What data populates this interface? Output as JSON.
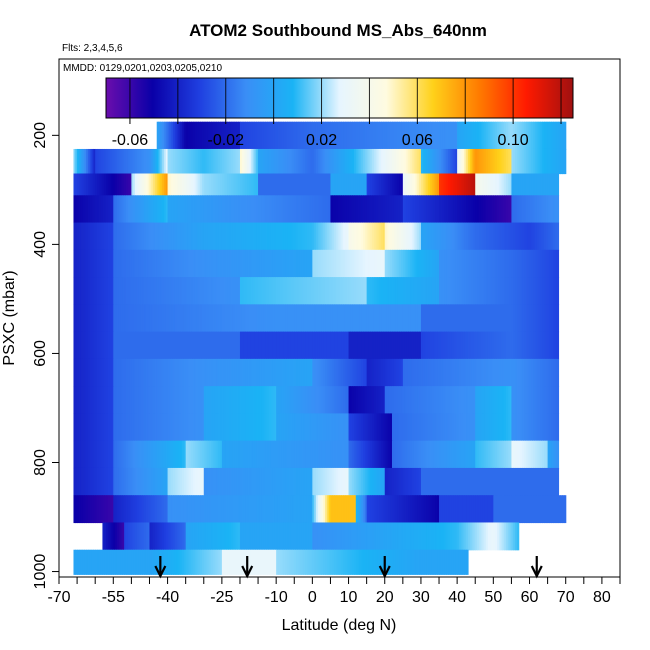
{
  "chart_data": {
    "type": "heatmap",
    "title": "ATOM2 Southbound MS_Abs_640nm",
    "flights_label": "Flts: 2,3,4,5,6",
    "dates_label": "MMDD: 0129,0201,0203,0205,0210",
    "xlabel": "Latitude (deg N)",
    "ylabel": "PSXC (mbar)",
    "xlim": [
      -70,
      85
    ],
    "ylim": [
      1010,
      60
    ],
    "x_ticks": [
      -70,
      -55,
      -40,
      -25,
      -10,
      0,
      10,
      20,
      30,
      40,
      50,
      60,
      70,
      80
    ],
    "y_ticks": [
      200,
      400,
      600,
      800,
      1000
    ],
    "colorbar": {
      "range": [
        -0.07,
        0.125
      ],
      "tick_values": [
        -0.06,
        -0.02,
        0.02,
        0.06,
        0.1
      ],
      "tick_labels": [
        "-0.06",
        "-0.02",
        "0.02",
        "0.06",
        "0.10"
      ],
      "colors": [
        "#6a0dad",
        "#0a00a8",
        "#1f3fe0",
        "#3a8ef6",
        "#1ab3f5",
        "#e6f5ff",
        "#fffbe0",
        "#ffd11a",
        "#ff7a00",
        "#ff1a00",
        "#a01010"
      ]
    },
    "arrow_latitudes": [
      -42,
      -18,
      20,
      62
    ],
    "rows": [
      {
        "p_min": 175,
        "p_max": 225,
        "x_min": -43,
        "x_max": 70,
        "segments": [
          [
            -43,
            0.0,
            -35,
            -0.05
          ],
          [
            -35,
            -0.05,
            -20,
            -0.04
          ],
          [
            -20,
            -0.03,
            0,
            -0.02
          ],
          [
            0,
            -0.02,
            40,
            -0.01
          ],
          [
            40,
            0.0,
            55,
            0.02
          ],
          [
            55,
            0.02,
            70,
            0.0
          ]
        ]
      },
      {
        "p_min": 225,
        "p_max": 270,
        "x_min": -66,
        "x_max": 70,
        "segments": [
          [
            -66,
            0.02,
            -60,
            -0.04
          ],
          [
            -60,
            -0.03,
            -45,
            -0.01
          ],
          [
            -45,
            -0.01,
            -40,
            0.03
          ],
          [
            -40,
            0.02,
            -30,
            0.01
          ],
          [
            -30,
            0.01,
            -20,
            0.02
          ],
          [
            -20,
            0.05,
            -15,
            0.01
          ],
          [
            -15,
            0.0,
            0,
            -0.02
          ],
          [
            0,
            -0.02,
            20,
            0.03
          ],
          [
            20,
            0.03,
            30,
            0.06
          ],
          [
            30,
            0.01,
            40,
            -0.03
          ],
          [
            40,
            0.03,
            45,
            0.08
          ],
          [
            45,
            0.08,
            55,
            0.06
          ],
          [
            55,
            0.02,
            70,
            0.0
          ]
        ]
      },
      {
        "p_min": 270,
        "p_max": 310,
        "x_min": -66,
        "x_max": 68,
        "segments": [
          [
            -66,
            -0.03,
            -50,
            -0.06
          ],
          [
            -50,
            0.02,
            -40,
            0.08
          ],
          [
            -40,
            0.05,
            -30,
            0.02
          ],
          [
            -30,
            0.02,
            -15,
            0.01
          ],
          [
            -15,
            -0.02,
            5,
            -0.02
          ],
          [
            5,
            0.0,
            15,
            0.0
          ],
          [
            15,
            -0.03,
            25,
            -0.05
          ],
          [
            25,
            0.03,
            35,
            0.08
          ],
          [
            35,
            0.1,
            45,
            0.12
          ],
          [
            45,
            0.04,
            55,
            0.02
          ],
          [
            55,
            0.0,
            68,
            0.0
          ]
        ]
      },
      {
        "p_min": 310,
        "p_max": 360,
        "x_min": -66,
        "x_max": 68,
        "segments": [
          [
            -66,
            -0.05,
            -55,
            -0.04
          ],
          [
            -55,
            -0.02,
            -40,
            0.01
          ],
          [
            -40,
            0.0,
            -20,
            -0.01
          ],
          [
            -20,
            -0.01,
            5,
            -0.02
          ],
          [
            5,
            -0.05,
            25,
            -0.04
          ],
          [
            25,
            -0.03,
            45,
            -0.05
          ],
          [
            45,
            -0.05,
            55,
            -0.06
          ],
          [
            55,
            -0.02,
            68,
            -0.01
          ]
        ]
      },
      {
        "p_min": 360,
        "p_max": 410,
        "x_min": -66,
        "x_max": 68,
        "segments": [
          [
            -66,
            -0.04,
            -55,
            -0.03
          ],
          [
            -55,
            -0.02,
            -30,
            0.0
          ],
          [
            -30,
            0.0,
            0,
            0.01
          ],
          [
            0,
            0.01,
            10,
            0.03
          ],
          [
            10,
            0.04,
            20,
            0.06
          ],
          [
            20,
            0.05,
            30,
            0.02
          ],
          [
            30,
            0.0,
            45,
            -0.02
          ],
          [
            45,
            -0.02,
            60,
            -0.03
          ],
          [
            60,
            -0.03,
            68,
            -0.02
          ]
        ]
      },
      {
        "p_min": 410,
        "p_max": 460,
        "x_min": -66,
        "x_max": 68,
        "segments": [
          [
            -66,
            -0.04,
            -55,
            -0.03
          ],
          [
            -55,
            -0.02,
            -30,
            -0.01
          ],
          [
            -30,
            -0.01,
            0,
            0.0
          ],
          [
            0,
            0.02,
            20,
            0.03
          ],
          [
            20,
            0.02,
            35,
            0.0
          ],
          [
            35,
            -0.01,
            55,
            -0.02
          ],
          [
            55,
            -0.02,
            68,
            -0.03
          ]
        ]
      },
      {
        "p_min": 460,
        "p_max": 510,
        "x_min": -66,
        "x_max": 68,
        "segments": [
          [
            -66,
            -0.04,
            -55,
            -0.03
          ],
          [
            -55,
            -0.02,
            -20,
            -0.01
          ],
          [
            -20,
            0.01,
            15,
            0.02
          ],
          [
            15,
            0.01,
            35,
            0.0
          ],
          [
            35,
            -0.01,
            55,
            -0.02
          ],
          [
            55,
            -0.02,
            68,
            -0.03
          ]
        ]
      },
      {
        "p_min": 510,
        "p_max": 560,
        "x_min": -66,
        "x_max": 68,
        "segments": [
          [
            -66,
            -0.04,
            -55,
            -0.03
          ],
          [
            -55,
            -0.02,
            -10,
            -0.01
          ],
          [
            -10,
            -0.01,
            30,
            -0.01
          ],
          [
            30,
            -0.02,
            55,
            -0.02
          ],
          [
            55,
            -0.02,
            68,
            -0.03
          ]
        ]
      },
      {
        "p_min": 560,
        "p_max": 610,
        "x_min": -66,
        "x_max": 68,
        "segments": [
          [
            -66,
            -0.04,
            -55,
            -0.03
          ],
          [
            -55,
            -0.02,
            -20,
            -0.02
          ],
          [
            -20,
            -0.03,
            10,
            -0.03
          ],
          [
            10,
            -0.04,
            30,
            -0.04
          ],
          [
            30,
            -0.03,
            55,
            -0.02
          ],
          [
            55,
            -0.02,
            68,
            -0.03
          ]
        ]
      },
      {
        "p_min": 610,
        "p_max": 660,
        "x_min": -66,
        "x_max": 68,
        "segments": [
          [
            -66,
            -0.04,
            -55,
            -0.03
          ],
          [
            -55,
            -0.02,
            -30,
            -0.01
          ],
          [
            -30,
            -0.01,
            0,
            0.0
          ],
          [
            0,
            -0.01,
            15,
            -0.03
          ],
          [
            15,
            -0.04,
            25,
            -0.03
          ],
          [
            25,
            -0.02,
            55,
            -0.01
          ],
          [
            55,
            -0.01,
            68,
            -0.02
          ]
        ]
      },
      {
        "p_min": 660,
        "p_max": 710,
        "x_min": -66,
        "x_max": 68,
        "segments": [
          [
            -66,
            -0.04,
            -55,
            -0.03
          ],
          [
            -55,
            -0.02,
            -30,
            -0.01
          ],
          [
            -30,
            0.0,
            -10,
            0.01
          ],
          [
            -10,
            0.0,
            10,
            -0.02
          ],
          [
            10,
            -0.05,
            20,
            -0.04
          ],
          [
            20,
            -0.02,
            45,
            -0.01
          ],
          [
            45,
            0.0,
            55,
            0.01
          ],
          [
            55,
            -0.01,
            68,
            -0.02
          ]
        ]
      },
      {
        "p_min": 710,
        "p_max": 760,
        "x_min": -66,
        "x_max": 68,
        "segments": [
          [
            -66,
            -0.04,
            -55,
            -0.03
          ],
          [
            -55,
            -0.02,
            -30,
            -0.01
          ],
          [
            -30,
            0.0,
            -10,
            0.01
          ],
          [
            -10,
            0.0,
            10,
            -0.01
          ],
          [
            10,
            -0.03,
            22,
            -0.05
          ],
          [
            22,
            -0.02,
            45,
            -0.01
          ],
          [
            45,
            0.0,
            55,
            0.01
          ],
          [
            55,
            -0.01,
            68,
            -0.02
          ]
        ]
      },
      {
        "p_min": 760,
        "p_max": 810,
        "x_min": -66,
        "x_max": 68,
        "segments": [
          [
            -66,
            -0.04,
            -55,
            -0.03
          ],
          [
            -55,
            -0.02,
            -35,
            0.01
          ],
          [
            -35,
            0.02,
            -25,
            0.01
          ],
          [
            -25,
            0.0,
            10,
            -0.01
          ],
          [
            10,
            -0.02,
            22,
            -0.05
          ],
          [
            22,
            -0.02,
            45,
            0.0
          ],
          [
            45,
            0.01,
            55,
            0.02
          ],
          [
            55,
            0.03,
            65,
            0.02
          ],
          [
            65,
            0.0,
            68,
            -0.01
          ]
        ]
      },
      {
        "p_min": 810,
        "p_max": 860,
        "x_min": -66,
        "x_max": 68,
        "segments": [
          [
            -66,
            -0.04,
            -55,
            -0.03
          ],
          [
            -55,
            -0.02,
            -40,
            0.0
          ],
          [
            -40,
            0.02,
            -30,
            0.03
          ],
          [
            -30,
            -0.01,
            0,
            0.0
          ],
          [
            0,
            0.02,
            10,
            0.03
          ],
          [
            10,
            0.02,
            20,
            0.0
          ],
          [
            20,
            -0.04,
            30,
            -0.03
          ],
          [
            30,
            -0.02,
            55,
            -0.02
          ],
          [
            55,
            -0.02,
            68,
            -0.02
          ]
        ]
      },
      {
        "p_min": 860,
        "p_max": 910,
        "x_min": -66,
        "x_max": 70,
        "segments": [
          [
            -66,
            -0.05,
            -55,
            -0.06
          ],
          [
            -55,
            -0.04,
            -40,
            -0.02
          ],
          [
            -40,
            -0.01,
            0,
            0.0
          ],
          [
            0,
            0.01,
            5,
            0.07
          ],
          [
            5,
            0.07,
            12,
            0.07
          ],
          [
            12,
            0.01,
            15,
            -0.02
          ],
          [
            15,
            -0.03,
            35,
            -0.05
          ],
          [
            35,
            -0.03,
            50,
            -0.03
          ],
          [
            50,
            -0.02,
            70,
            -0.02
          ]
        ]
      },
      {
        "p_min": 910,
        "p_max": 960,
        "x_min": -58,
        "x_max": 57,
        "segments": [
          [
            -58,
            -0.04,
            -52,
            -0.06
          ],
          [
            -52,
            -0.03,
            -45,
            -0.02
          ],
          [
            -45,
            -0.04,
            -35,
            -0.02
          ],
          [
            -35,
            0.0,
            -20,
            0.01
          ],
          [
            -20,
            0.0,
            0,
            0.0
          ],
          [
            0,
            -0.01,
            20,
            0.0
          ],
          [
            20,
            0.0,
            40,
            0.01
          ],
          [
            40,
            0.01,
            50,
            0.03
          ],
          [
            50,
            0.03,
            57,
            0.01
          ]
        ]
      },
      {
        "p_min": 960,
        "p_max": 1005,
        "x_min": -66,
        "x_max": 43,
        "segments": [
          [
            -66,
            0.0,
            -45,
            0.0
          ],
          [
            -45,
            0.0,
            -25,
            0.02
          ],
          [
            -25,
            0.03,
            -10,
            0.03
          ],
          [
            -10,
            0.02,
            10,
            0.01
          ],
          [
            10,
            0.01,
            30,
            0.0
          ],
          [
            30,
            0.0,
            43,
            0.0
          ]
        ]
      }
    ]
  }
}
